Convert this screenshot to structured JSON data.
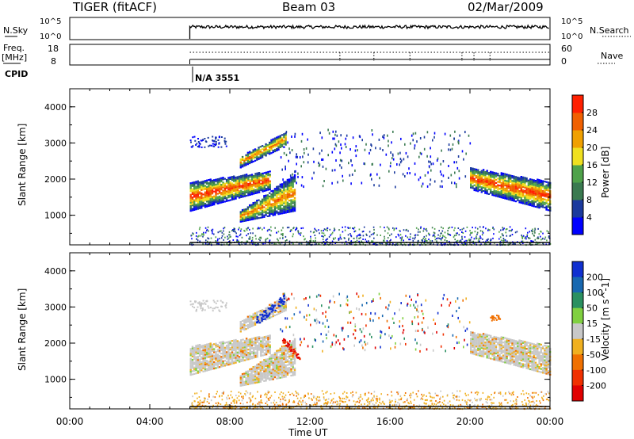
{
  "header": {
    "station": "TIGER (fitACF)",
    "beam": "Beam 03",
    "date": "02/Mar/2009"
  },
  "top_panels": {
    "nsky_label": "N.Sky",
    "nsky_ticks": [
      "10^5",
      "10^0"
    ],
    "nsearch_label": "N.Search",
    "nsearch_ticks": [
      "10^5",
      "10^0"
    ],
    "freq_label": "Freq.",
    "freq_unit": "[MHz]",
    "freq_ticks": [
      "18",
      "8"
    ],
    "nave_label": "Nave",
    "nave_ticks": [
      "60",
      "0"
    ],
    "cpid_label": "CPID",
    "cpid_value": "N/A 3551"
  },
  "colors": {
    "power_scale": [
      "#0000ff",
      "#1b3a9e",
      "#3a7a50",
      "#4fa24a",
      "#f0e020",
      "#f0a000",
      "#f06000",
      "#ff2000"
    ],
    "velocity_scale": [
      "#1030d0",
      "#1868b0",
      "#2a9060",
      "#80d040",
      "#c8c8c8",
      "#f0b020",
      "#f07000",
      "#f03000",
      "#e00000"
    ]
  },
  "chart_data": [
    {
      "type": "heatmap",
      "title": "",
      "xlabel": "",
      "ylabel": "Slant Range [km]",
      "x_ticks": [
        "00:00",
        "04:00",
        "08:00",
        "12:00",
        "16:00",
        "20:00",
        "00:00"
      ],
      "x_range_hours": [
        0,
        24
      ],
      "y_ticks": [
        "1000",
        "2000",
        "3000",
        "4000"
      ],
      "y_range_km": [
        180,
        4500
      ],
      "colorbar_label": "Power [dB]",
      "colorbar_ticks": [
        "4",
        "8",
        "12",
        "16",
        "20",
        "24",
        "28"
      ],
      "data_start_hour": 6.0
    },
    {
      "type": "heatmap",
      "title": "",
      "xlabel": "Time UT",
      "ylabel": "Slant Range [km]",
      "x_ticks": [
        "00:00",
        "04:00",
        "08:00",
        "12:00",
        "16:00",
        "20:00",
        "00:00"
      ],
      "x_range_hours": [
        0,
        24
      ],
      "y_ticks": [
        "1000",
        "2000",
        "3000",
        "4000"
      ],
      "y_range_km": [
        180,
        4500
      ],
      "colorbar_label": "Velocity [m s^-1]",
      "colorbar_ticks": [
        "200",
        "100",
        "50",
        "15",
        "-15",
        "-50",
        "-100",
        "-200"
      ],
      "data_start_hour": 6.0
    }
  ]
}
